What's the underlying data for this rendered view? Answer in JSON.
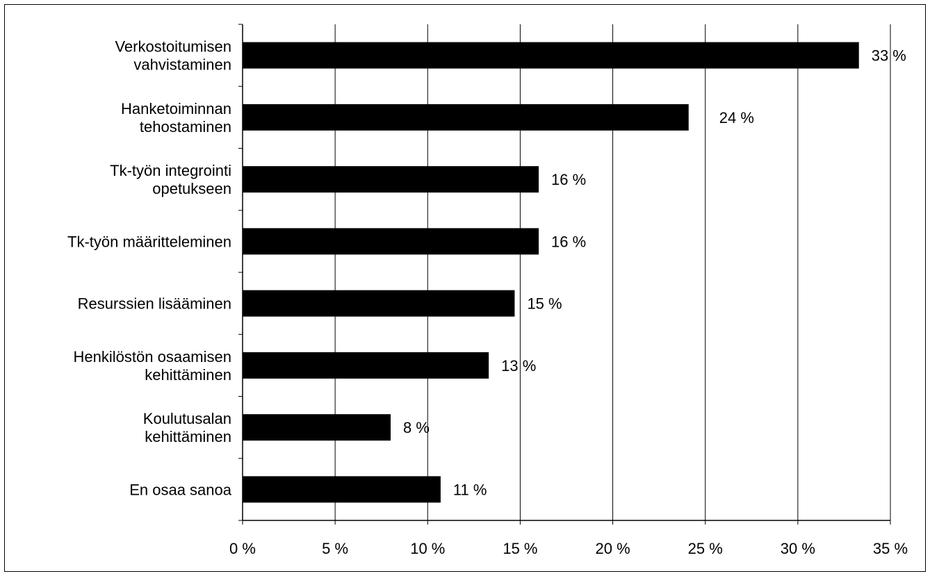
{
  "chart_data": {
    "type": "bar",
    "orientation": "horizontal",
    "categories": [
      [
        "Verkostoitumisen",
        "vahvistaminen"
      ],
      [
        "Hanketoiminnan",
        "tehostaminen"
      ],
      [
        "Tk-työn integrointi",
        "opetukseen"
      ],
      [
        "Tk-työn määritteleminen"
      ],
      [
        "Resurssien lisääminen"
      ],
      [
        "Henkilöstön osaamisen",
        "kehittäminen"
      ],
      [
        "Koulutusalan",
        "kehittäminen"
      ],
      [
        "En osaa sanoa"
      ]
    ],
    "values": [
      33.3,
      24.1,
      16.0,
      16.0,
      14.7,
      13.3,
      8.0,
      10.7
    ],
    "data_labels": [
      "33 %",
      "24 %",
      "16 %",
      "16 %",
      "15 %",
      "13 %",
      "8 %",
      "11 %"
    ],
    "xlim": [
      0,
      35
    ],
    "xticks": [
      0,
      5,
      10,
      15,
      20,
      25,
      30,
      35
    ],
    "xtick_labels": [
      "0 %",
      "5 %",
      "10 %",
      "15 %",
      "20 %",
      "25 %",
      "30 %",
      "35 %"
    ],
    "title": "",
    "xlabel": "",
    "ylabel": "",
    "grid": "vertical",
    "legend": "none",
    "colors": {
      "bar": "#000000",
      "grid": "#000000",
      "background": "#ffffff"
    }
  }
}
